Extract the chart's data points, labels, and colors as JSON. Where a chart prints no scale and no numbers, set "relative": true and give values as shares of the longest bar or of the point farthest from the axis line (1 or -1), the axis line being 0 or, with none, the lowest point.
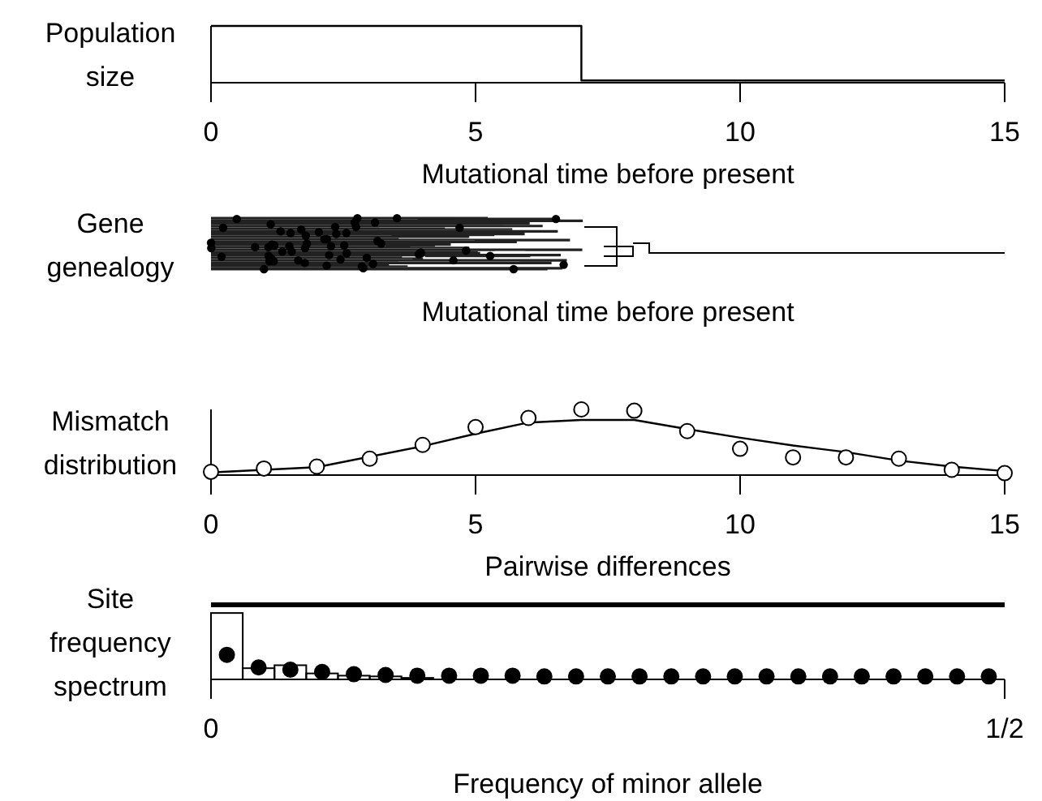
{
  "chart_data": [
    {
      "type": "step",
      "ylabel": "Population size",
      "xlabel": "Mutational time before present",
      "relative": true,
      "x": [
        0,
        7,
        15
      ],
      "values": [
        1,
        0.04,
        0.04
      ],
      "xlim": [
        0,
        15
      ],
      "xticks": [
        0,
        5,
        10,
        15
      ]
    },
    {
      "type": "other",
      "ylabel": "Gene genealogy",
      "xlabel": "Mutational time before present"
    },
    {
      "type": "line",
      "ylabel": "Mismatch distribution",
      "xlabel": "Pairwise differences",
      "relative": true,
      "xlim": [
        0,
        15
      ],
      "xticks": [
        0,
        5,
        10,
        15
      ],
      "series": [
        {
          "type": "line",
          "color": "#000000",
          "x": [
            0,
            2,
            4,
            5,
            6,
            7,
            8,
            9,
            10,
            11,
            12,
            13,
            14,
            15
          ],
          "values": [
            0.04,
            0.12,
            0.44,
            0.63,
            0.8,
            0.84,
            0.84,
            0.7,
            0.57,
            0.45,
            0.35,
            0.22,
            0.13,
            0.06
          ]
        },
        {
          "type": "scatter",
          "color": "#000000",
          "marker": "circle",
          "x": [
            0,
            1,
            2,
            3,
            4,
            5,
            6,
            7,
            8,
            9,
            10,
            11,
            12,
            13,
            14,
            15
          ],
          "values": [
            0.05,
            0.1,
            0.13,
            0.25,
            0.46,
            0.73,
            0.87,
            1,
            0.98,
            0.67,
            0.4,
            0.27,
            0.27,
            0.25,
            0.08,
            0.03
          ]
        }
      ]
    },
    {
      "type": "histogram",
      "ylabel": "Site frequency spectrum",
      "xlabel": "Frequency of minor allele",
      "relative": true,
      "xlim": [
        0,
        0.5
      ],
      "xticks": [
        0,
        {
          "value": 0.5,
          "label": "1/2"
        }
      ],
      "bins": [
        0,
        0.02,
        0.04,
        0.06,
        0.08,
        0.1,
        0.12,
        0.14,
        0.16,
        0.18,
        0.2,
        0.22,
        0.24,
        0.26,
        0.28,
        0.3,
        0.32,
        0.34,
        0.36,
        0.38,
        0.4,
        0.42,
        0.44,
        0.46,
        0.48,
        0.5
      ],
      "values": [
        0.89,
        0.15,
        0.19,
        0.08,
        0.05,
        0.04,
        0.02,
        0,
        0,
        0,
        0,
        0,
        0,
        0,
        0,
        0,
        0,
        0,
        0,
        0,
        0,
        0,
        0,
        0,
        0
      ],
      "series": [
        {
          "type": "scatter",
          "color": "#000000",
          "marker": "circle",
          "x": [
            0.01,
            0.03,
            0.05,
            0.07,
            0.09,
            0.11,
            0.13,
            0.15,
            0.17,
            0.19,
            0.21,
            0.23,
            0.25,
            0.27,
            0.29,
            0.31,
            0.33,
            0.35,
            0.37,
            0.39,
            0.41,
            0.43,
            0.45,
            0.47,
            0.49
          ],
          "values": [
            0.33,
            0.16,
            0.13,
            0.1,
            0.07,
            0.06,
            0.05,
            0.05,
            0.05,
            0.05,
            0.04,
            0.04,
            0.04,
            0.04,
            0.04,
            0.04,
            0.04,
            0.04,
            0.04,
            0.04,
            0.04,
            0.04,
            0.04,
            0.04,
            0.04
          ]
        },
        {
          "type": "line",
          "color": "#000000",
          "x": [
            0,
            0.5
          ],
          "values": [
            1,
            1
          ]
        }
      ]
    }
  ]
}
